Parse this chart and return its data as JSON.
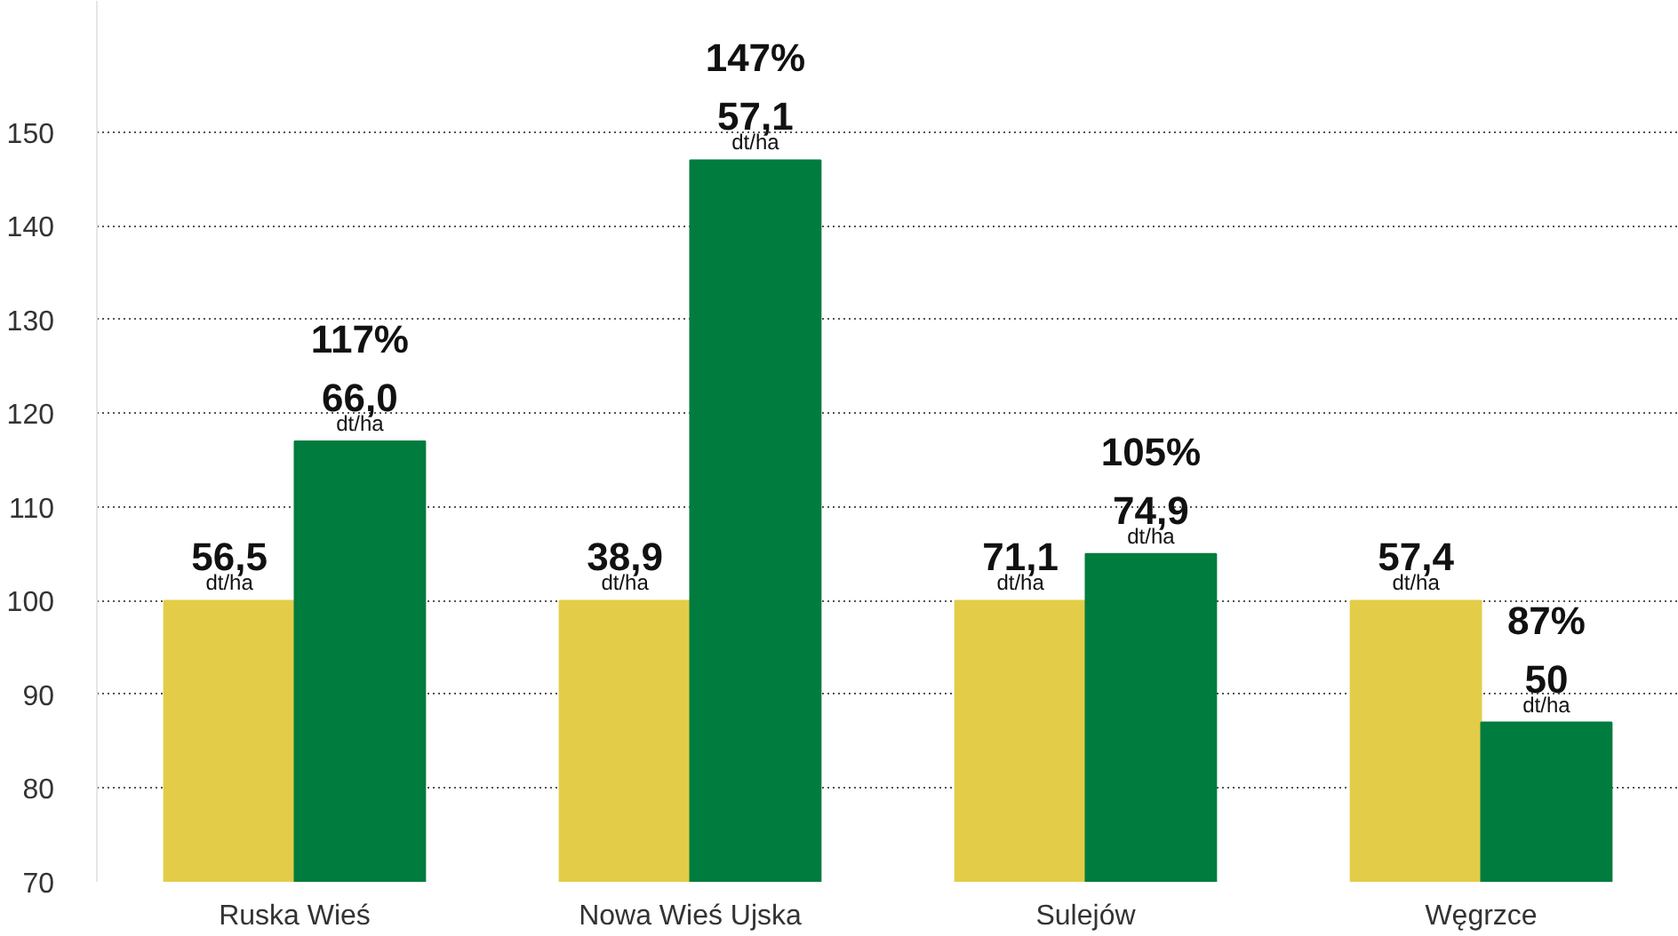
{
  "chart_data": {
    "type": "bar",
    "categories": [
      "Ruska Wieś",
      "Nowa Wieś Ujska",
      "Sulejów",
      "Węgrzce"
    ],
    "series": [
      {
        "color": "#e3cd48",
        "values": [
          100,
          100,
          100,
          100
        ]
      },
      {
        "color": "#007c3e",
        "values": [
          117,
          147,
          105,
          87
        ],
        "value_labels": [
          "117%\n66,0\ndt/ha",
          "147%\n57,1\ndt/ha",
          "105%\n74,9\ndt/ha",
          "87%\n50\ndt/ha"
        ]
      }
    ],
    "ylim": [
      70,
      164
    ],
    "yticks": [
      70,
      80,
      90,
      100,
      110,
      120,
      130,
      140,
      150
    ],
    "grid": "y",
    "annotations": [
      {
        "text": "56,5\ndt/ha",
        "x": "Ruska Wieś",
        "y": 100
      },
      {
        "text": "38,9\ndt/ha",
        "x": "Nowa Wieś Ujska",
        "y": 100
      },
      {
        "text": "71,1\ndt/ha",
        "x": "Sulejów",
        "y": 100
      },
      {
        "text": "57,4\ndt/ha",
        "x": "Węgrzce",
        "y": 100
      }
    ]
  }
}
